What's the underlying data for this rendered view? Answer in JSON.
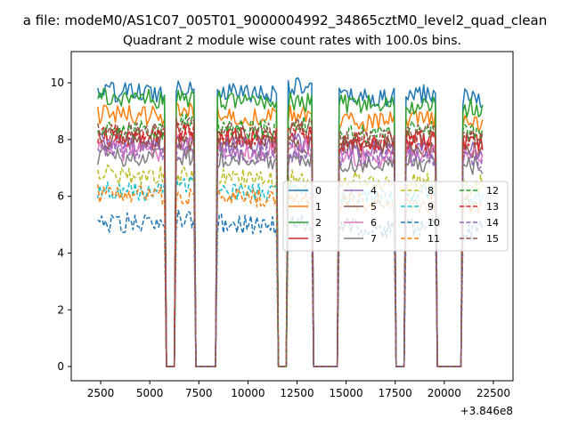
{
  "chart_data": {
    "type": "line",
    "suptitle": "a file: modeM0/AS1C07_005T01_9000004992_34865cztM0_level2_quad_clean",
    "title": "Quadrant 2 module wise count rates with 100.0s bins.",
    "xlabel": "",
    "ylabel": "",
    "x_offset_label": "+3.846e8",
    "xlim": [
      1000,
      23500
    ],
    "ylim": [
      -0.5,
      11.1
    ],
    "xticks": [
      2500,
      5000,
      7500,
      10000,
      12500,
      15000,
      17500,
      20000,
      22500
    ],
    "yticks": [
      0,
      2,
      4,
      6,
      8,
      10
    ],
    "bin_width_s": 100,
    "x_start": 2350,
    "x_end": 21950,
    "gaps": [
      [
        5800,
        6300
      ],
      [
        7300,
        8400
      ],
      [
        11500,
        12000
      ],
      [
        13300,
        14600
      ],
      [
        17500,
        18000
      ],
      [
        19600,
        20900
      ]
    ],
    "legend": {
      "loc": "center right",
      "ncol": 4
    },
    "series": [
      {
        "name": "0",
        "level": 9.7,
        "color": "#1f77b4",
        "dash": "solid"
      },
      {
        "name": "1",
        "level": 8.9,
        "color": "#ff7f0e",
        "dash": "solid"
      },
      {
        "name": "2",
        "level": 9.5,
        "color": "#2ca02c",
        "dash": "solid"
      },
      {
        "name": "3",
        "level": 8.1,
        "color": "#d62728",
        "dash": "solid"
      },
      {
        "name": "4",
        "level": 7.9,
        "color": "#9467bd",
        "dash": "solid"
      },
      {
        "name": "5",
        "level": 8.0,
        "color": "#8c564b",
        "dash": "solid"
      },
      {
        "name": "6",
        "level": 7.6,
        "color": "#e377c2",
        "dash": "solid"
      },
      {
        "name": "7",
        "level": 7.4,
        "color": "#7f7f7f",
        "dash": "solid"
      },
      {
        "name": "8",
        "level": 6.8,
        "color": "#bcbd22",
        "dash": "dashed"
      },
      {
        "name": "9",
        "level": 6.2,
        "color": "#17becf",
        "dash": "dashed"
      },
      {
        "name": "10",
        "level": 5.1,
        "color": "#1f77b4",
        "dash": "dashed"
      },
      {
        "name": "11",
        "level": 6.1,
        "color": "#ff7f0e",
        "dash": "dashed"
      },
      {
        "name": "12",
        "level": 8.4,
        "color": "#2ca02c",
        "dash": "dashed"
      },
      {
        "name": "13",
        "level": 8.2,
        "color": "#d62728",
        "dash": "dashed"
      },
      {
        "name": "14",
        "level": 7.7,
        "color": "#9467bd",
        "dash": "dashed"
      },
      {
        "name": "15",
        "level": 8.3,
        "color": "#8c564b",
        "dash": "dashed"
      }
    ]
  }
}
